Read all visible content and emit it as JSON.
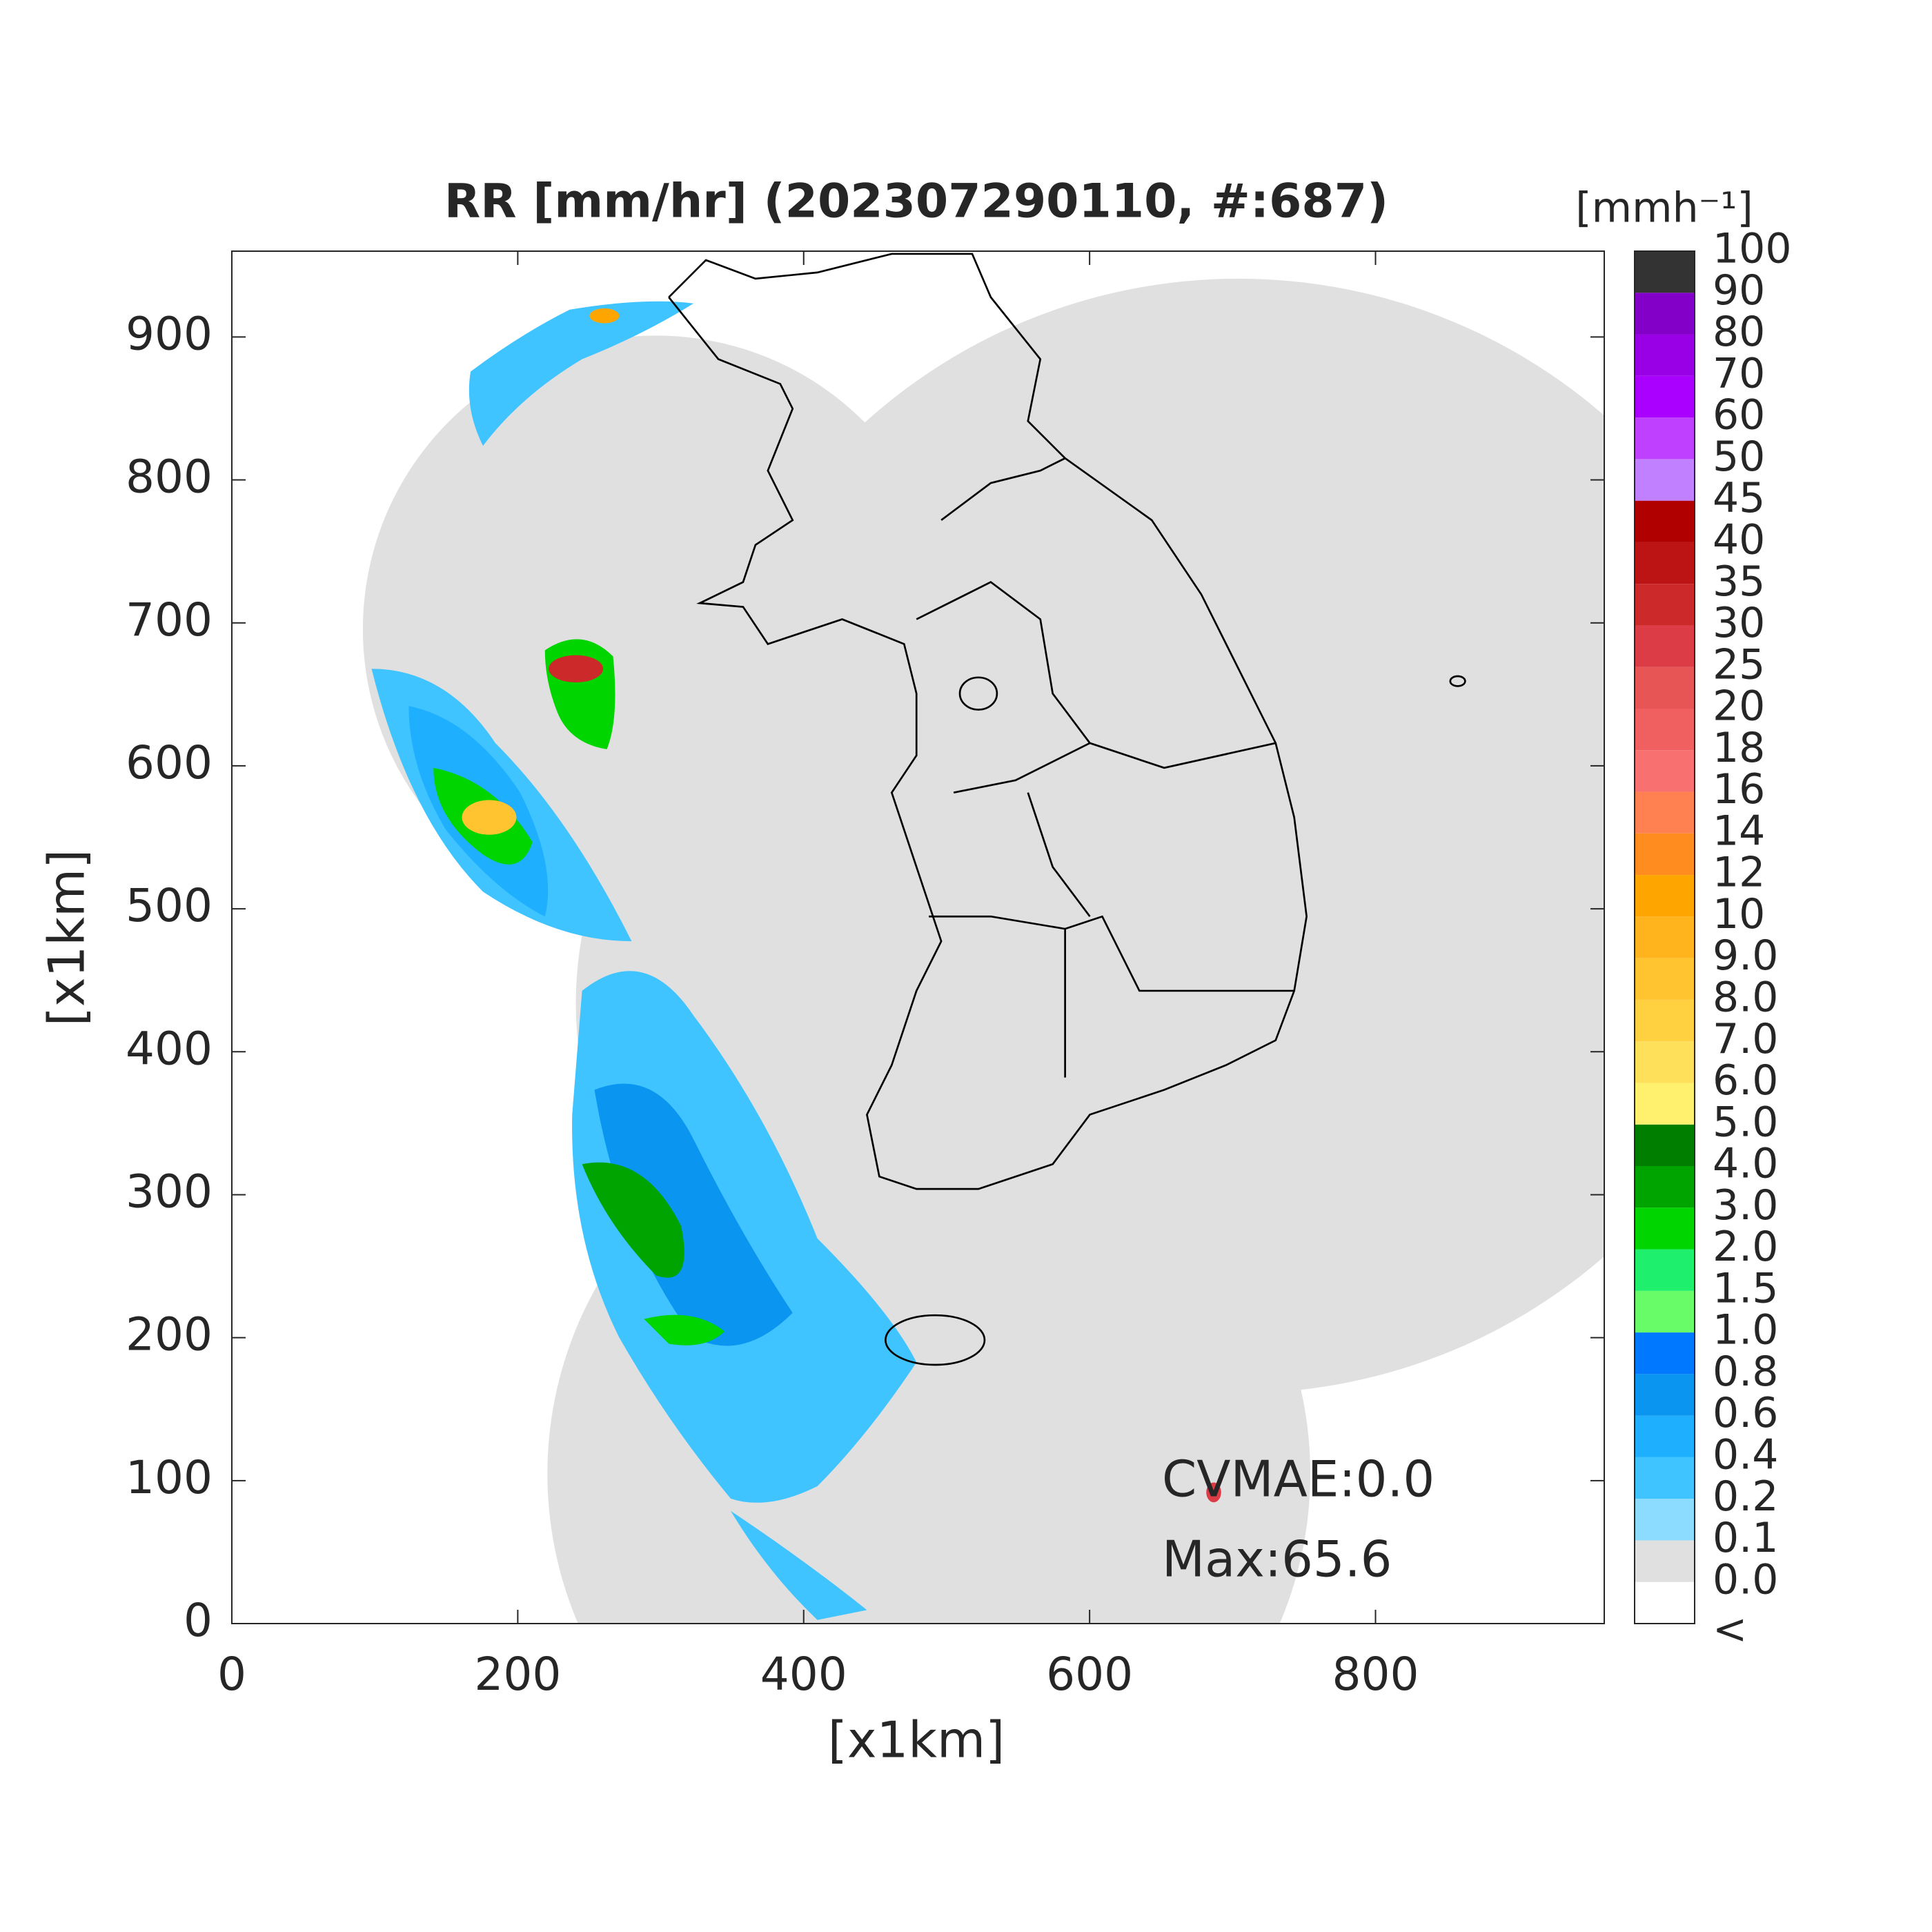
{
  "chart_data": {
    "type": "map",
    "title": "RR [mm/hr] (202307290110, #:687)",
    "xlabel": "[x1km]",
    "ylabel": "[x1km]",
    "xlim": [
      0,
      960
    ],
    "ylim": [
      0,
      960
    ],
    "xticks": [
      0,
      200,
      400,
      600,
      800
    ],
    "yticks": [
      0,
      100,
      200,
      300,
      400,
      500,
      600,
      700,
      800,
      900
    ],
    "annotations": [
      "CVMAE:0.0",
      "Max:65.6"
    ],
    "colorbar": {
      "title": "[mmh⁻¹]",
      "labels": [
        "<",
        "0.0",
        "0.1",
        "0.2",
        "0.4",
        "0.6",
        "0.8",
        "1.0",
        "1.5",
        "2.0",
        "3.0",
        "4.0",
        "5.0",
        "6.0",
        "7.0",
        "8.0",
        "9.0",
        "10",
        "12",
        "14",
        "16",
        "18",
        "20",
        "25",
        "30",
        "35",
        "40",
        "45",
        "50",
        "60",
        "70",
        "80",
        "90",
        "100"
      ],
      "colors": [
        "#ffffff",
        "#e0e0e0",
        "#8cdcff",
        "#40c4ff",
        "#1eb0ff",
        "#0a96f0",
        "#0078ff",
        "#69fc69",
        "#1ef06e",
        "#00d500",
        "#00a400",
        "#007e00",
        "#fff06e",
        "#ffe05a",
        "#ffd040",
        "#ffc430",
        "#ffb41e",
        "#ffa500",
        "#ff8c1e",
        "#ff8050",
        "#f87070",
        "#f06060",
        "#e85555",
        "#dc3c46",
        "#cc2a2a",
        "#bc1414",
        "#b00000",
        "#c080ff",
        "#c040ff",
        "#aa00ff",
        "#9a00e6",
        "#8200c8",
        "#333333"
      ]
    }
  }
}
